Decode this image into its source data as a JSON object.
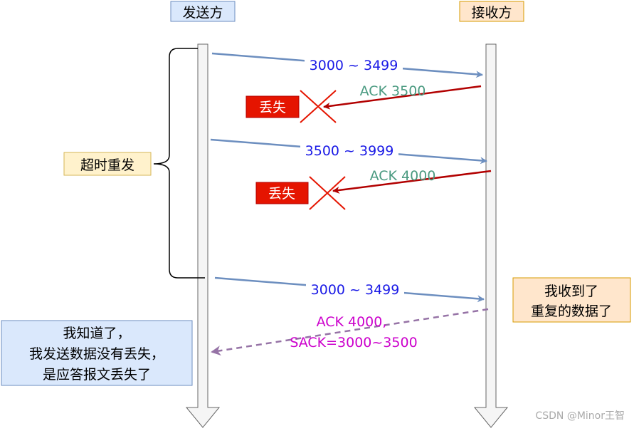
{
  "participants": {
    "sender": "发送方",
    "receiver": "接收方"
  },
  "messages": [
    {
      "label": "3000 ~ 3499",
      "direction": "sender-to-receiver",
      "style": "solid",
      "color": "#6c8ebf",
      "label_color": "#1a1ae6"
    },
    {
      "label": "ACK 3500",
      "direction": "receiver-to-sender",
      "style": "solid",
      "color": "#b20000",
      "label_color": "#4a9a80",
      "lost": true
    },
    {
      "label": "3500 ~ 3999",
      "direction": "sender-to-receiver",
      "style": "solid",
      "color": "#6c8ebf",
      "label_color": "#1a1ae6"
    },
    {
      "label": "ACK 4000",
      "direction": "receiver-to-sender",
      "style": "solid",
      "color": "#b20000",
      "label_color": "#4a9a80",
      "lost": true
    },
    {
      "label": "3000 ~ 3499",
      "direction": "sender-to-receiver",
      "style": "solid",
      "color": "#6c8ebf",
      "label_color": "#1a1ae6"
    },
    {
      "label_line1": "ACK 4000,",
      "label_line2": "SACK=3000~3500",
      "direction": "receiver-to-sender",
      "style": "dashed",
      "color": "#9673a6",
      "label_color": "#cc00cc"
    }
  ],
  "lost_label": "丢失",
  "timeout_label": "超时重发",
  "receiver_note": {
    "line1": "我收到了",
    "line2": "重复的数据了"
  },
  "sender_note": {
    "line1": "我知道了，",
    "line2": "我发送数据没有丢失，",
    "line3": "是应答报文丢失了"
  },
  "watermark": "CSDN @Minor王智"
}
